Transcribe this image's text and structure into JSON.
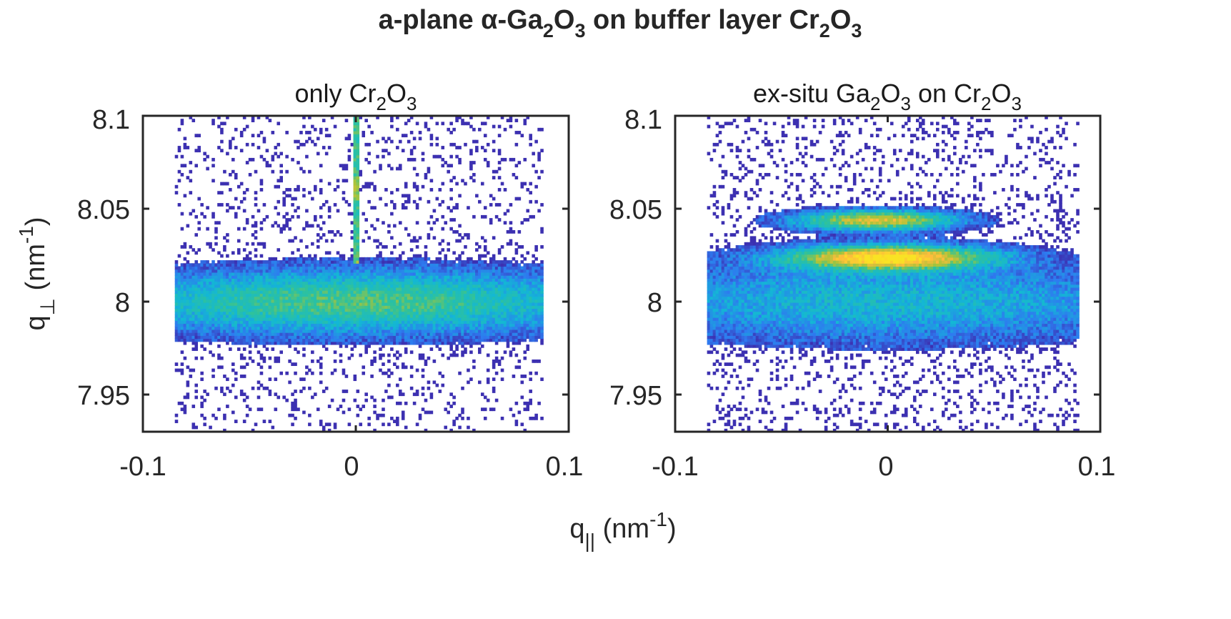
{
  "figure": {
    "title": {
      "pre": "a-plane α-Ga",
      "s1": "2",
      "mid1": "O",
      "s2": "3",
      "mid2": " on buffer layer Cr",
      "s3": "2",
      "mid3": "O",
      "s4": "3",
      "post": ""
    },
    "xlabel": {
      "base": "q",
      "sub": "||",
      "unit": " (nm",
      "sup": "-1",
      "close": ")"
    },
    "ylabel": {
      "base": "q",
      "sub": "⊥",
      "unit": " (nm",
      "sup": "-1",
      "close": ")"
    }
  },
  "chart_data": [
    {
      "type": "heatmap",
      "title": {
        "pre": "only Cr",
        "s1": "2",
        "mid1": "O",
        "s2": "3",
        "post": ""
      },
      "xlim": [
        -0.1,
        0.1
      ],
      "ylim": [
        7.93,
        8.1
      ],
      "xticks": [
        "-0.1",
        "0",
        "0.1"
      ],
      "xtick_values": [
        -0.1,
        0,
        0.1
      ],
      "yticks": [
        "7.95",
        "8",
        "8.05",
        "8.1"
      ],
      "ytick_values": [
        7.95,
        8.0,
        8.05,
        8.1
      ],
      "data_extent_x": [
        -0.085,
        0.088
      ],
      "data_extent_y": [
        7.93,
        8.1
      ],
      "peaks": [
        {
          "x": 0.0,
          "y": 8.0,
          "intensity": 0.55,
          "sigma_x": 0.09,
          "sigma_y": 0.012
        }
      ],
      "streak": {
        "x": 0.0,
        "y_from": 8.02,
        "y_to": 8.1,
        "intensity": 0.5
      },
      "background": 0.22,
      "colormap": [
        "#3e26a8",
        "#2e7af0",
        "#13b7d5",
        "#2fc29b",
        "#a7c43a",
        "#fdbc3c",
        "#f9e324"
      ],
      "grid": false
    },
    {
      "type": "heatmap",
      "title": {
        "pre": "ex-situ Ga",
        "s1": "2",
        "mid1": "O",
        "s2": "3",
        "mid2": " on Cr",
        "s3": "2",
        "mid3": "O",
        "s4": "3",
        "post": ""
      },
      "xlim": [
        -0.1,
        0.1
      ],
      "ylim": [
        7.93,
        8.1
      ],
      "xticks": [
        "-0.1",
        "0",
        "0.1"
      ],
      "xtick_values": [
        -0.1,
        0,
        0.1
      ],
      "yticks": [
        "7.95",
        "8",
        "8.05",
        "8.1"
      ],
      "ytick_values": [
        7.95,
        8.0,
        8.05,
        8.1
      ],
      "data_extent_x": [
        -0.085,
        0.09
      ],
      "data_extent_y": [
        7.93,
        8.1
      ],
      "peaks": [
        {
          "x": 0.0,
          "y": 8.0,
          "intensity": 0.35,
          "sigma_x": 0.1,
          "sigma_y": 0.015
        },
        {
          "x": 0.0,
          "y": 8.024,
          "intensity": 0.95,
          "sigma_x": 0.033,
          "sigma_y": 0.0045
        },
        {
          "x": -0.005,
          "y": 8.044,
          "intensity": 0.78,
          "sigma_x": 0.027,
          "sigma_y": 0.0038
        }
      ],
      "background": 0.25,
      "colormap": [
        "#3e26a8",
        "#2e7af0",
        "#13b7d5",
        "#2fc29b",
        "#a7c43a",
        "#fdbc3c",
        "#f9e324"
      ],
      "grid": false
    }
  ]
}
